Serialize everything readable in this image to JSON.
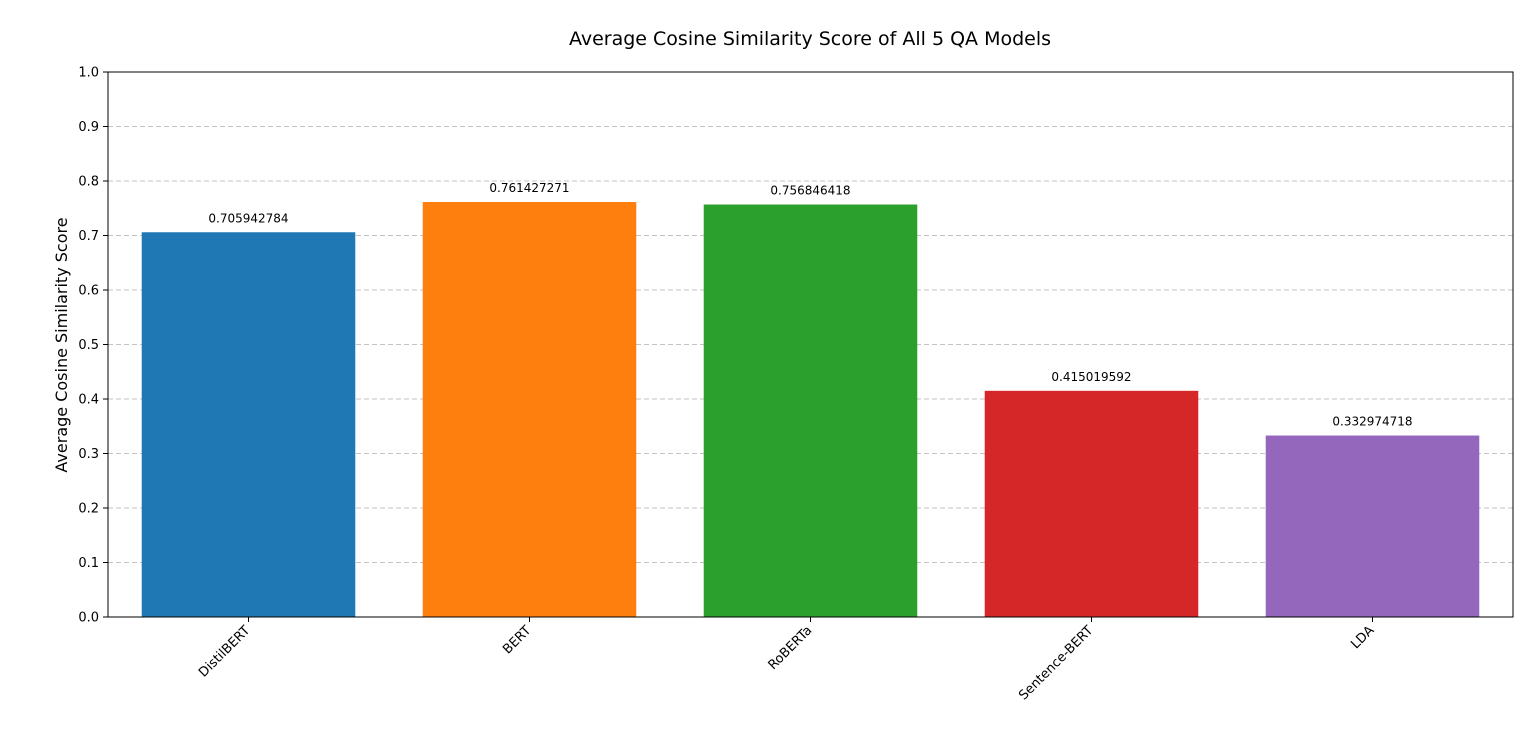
{
  "chart_data": {
    "type": "bar",
    "title": "Average Cosine Similarity Score of All 5 QA Models",
    "xlabel": "",
    "ylabel": "Average Cosine Similarity Score",
    "categories": [
      "DistilBERT",
      "BERT",
      "RoBERTa",
      "Sentence-BERT",
      "LDA"
    ],
    "values": [
      0.705942784,
      0.761427271,
      0.756846418,
      0.415019592,
      0.332974718
    ],
    "data_labels": [
      "0.705942784",
      "0.761427271",
      "0.756846418",
      "0.415019592",
      "0.332974718"
    ],
    "colors": [
      "#1f77b4",
      "#ff7f0e",
      "#2ca02c",
      "#d62728",
      "#9467bd"
    ],
    "ylim": [
      0,
      1.0
    ],
    "yticks": [
      "0.0",
      "0.1",
      "0.2",
      "0.3",
      "0.4",
      "0.5",
      "0.6",
      "0.7",
      "0.8",
      "0.9",
      "1.0"
    ],
    "grid": "y-dashed",
    "legend": "none"
  }
}
